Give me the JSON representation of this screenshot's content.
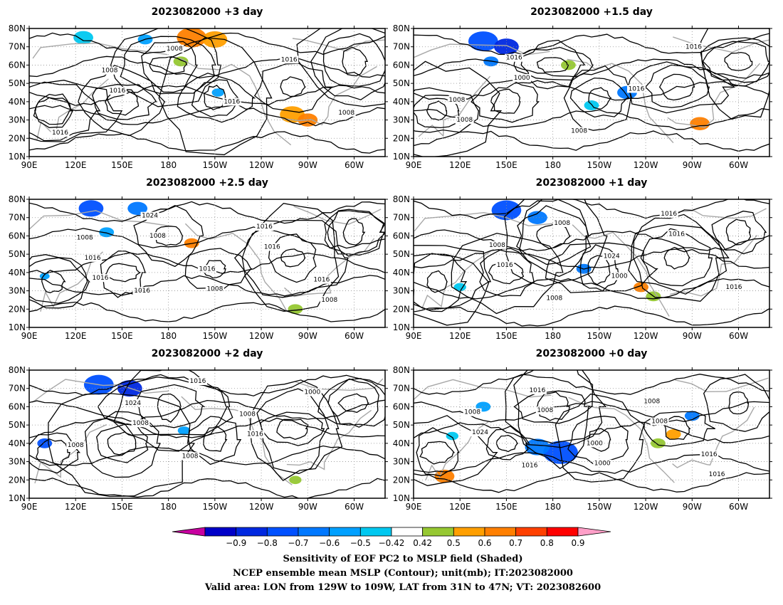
{
  "panels": [
    {
      "title": "2023082000 +3 day",
      "contour_labels": [
        "1016",
        "1016",
        "1008",
        "1016",
        "1016",
        "1008",
        "1008"
      ],
      "blobs": [
        {
          "lon": 195,
          "lat": 75,
          "r": 6,
          "color": "#ff7f00"
        },
        {
          "lon": 210,
          "lat": 74,
          "r": 5,
          "color": "#ff9f00"
        },
        {
          "lon": 260,
          "lat": 33,
          "r": 5,
          "color": "#ff9f00"
        },
        {
          "lon": 270,
          "lat": 30,
          "r": 4,
          "color": "#ff7f00"
        },
        {
          "lon": 125,
          "lat": 75,
          "r": 4,
          "color": "#00c8f0"
        },
        {
          "lon": 165,
          "lat": 74,
          "r": 3,
          "color": "#00a0ff"
        },
        {
          "lon": 212,
          "lat": 45,
          "r": 2.5,
          "color": "#00a0ff"
        },
        {
          "lon": 188,
          "lat": 62,
          "r": 3,
          "color": "#96c832"
        }
      ]
    },
    {
      "title": "2023082000 +1.5 day",
      "contour_labels": [
        "1008",
        "1000",
        "1008",
        "1016",
        "1016",
        "1008",
        "1016"
      ],
      "blobs": [
        {
          "lon": 135,
          "lat": 73,
          "r": 6,
          "color": "#0050ff"
        },
        {
          "lon": 150,
          "lat": 70,
          "r": 5,
          "color": "#0028e0"
        },
        {
          "lon": 140,
          "lat": 62,
          "r": 3,
          "color": "#0078ff"
        },
        {
          "lon": 228,
          "lat": 45,
          "r": 4,
          "color": "#0078ff"
        },
        {
          "lon": 275,
          "lat": 28,
          "r": 4,
          "color": "#ff7f00"
        },
        {
          "lon": 205,
          "lat": 38,
          "r": 3,
          "color": "#00c8f0"
        },
        {
          "lon": 190,
          "lat": 60,
          "r": 3,
          "color": "#96c832"
        }
      ]
    },
    {
      "title": "2023082000 +2.5 day",
      "contour_labels": [
        "1016",
        "1008",
        "1008",
        "1016",
        "1008",
        "1016",
        "1024",
        "1016",
        "1016",
        "1016",
        "1008",
        "1016"
      ],
      "blobs": [
        {
          "lon": 130,
          "lat": 75,
          "r": 5,
          "color": "#0050ff"
        },
        {
          "lon": 160,
          "lat": 75,
          "r": 4,
          "color": "#0078ff"
        },
        {
          "lon": 140,
          "lat": 62,
          "r": 3,
          "color": "#00a0ff"
        },
        {
          "lon": 195,
          "lat": 56,
          "r": 3,
          "color": "#ff7f00"
        },
        {
          "lon": 262,
          "lat": 20,
          "r": 3,
          "color": "#96c832"
        },
        {
          "lon": 100,
          "lat": 38,
          "r": 2,
          "color": "#00a0ff"
        }
      ]
    },
    {
      "title": "2023082000 +1 day",
      "contour_labels": [
        "1016",
        "1008",
        "1000",
        "1016",
        "1016",
        "1008",
        "1008",
        "1024",
        "1016"
      ],
      "blobs": [
        {
          "lon": 150,
          "lat": 74,
          "r": 6,
          "color": "#0050ff"
        },
        {
          "lon": 170,
          "lat": 70,
          "r": 4,
          "color": "#0078ff"
        },
        {
          "lon": 200,
          "lat": 42,
          "r": 3,
          "color": "#0078ff"
        },
        {
          "lon": 237,
          "lat": 32,
          "r": 3,
          "color": "#ff7f00"
        },
        {
          "lon": 245,
          "lat": 27,
          "r": 3,
          "color": "#96c832"
        },
        {
          "lon": 120,
          "lat": 32,
          "r": 2.5,
          "color": "#00c8f0"
        }
      ]
    },
    {
      "title": "2023082000 +2 day",
      "contour_labels": [
        "1008",
        "1016",
        "1016",
        "1000",
        "1008",
        "1024",
        "1008",
        "1008"
      ],
      "blobs": [
        {
          "lon": 135,
          "lat": 72,
          "r": 6,
          "color": "#0050ff"
        },
        {
          "lon": 155,
          "lat": 70,
          "r": 5,
          "color": "#0028e0"
        },
        {
          "lon": 100,
          "lat": 40,
          "r": 3,
          "color": "#0050ff"
        },
        {
          "lon": 190,
          "lat": 47,
          "r": 2.5,
          "color": "#00a0ff"
        },
        {
          "lon": 262,
          "lat": 20,
          "r": 2.5,
          "color": "#96c832"
        }
      ]
    },
    {
      "title": "2023082000 +0 day",
      "contour_labels": [
        "1008",
        "1000",
        "1008",
        "1016",
        "1024",
        "1016",
        "1000",
        "1008",
        "1016",
        "1008",
        "1016"
      ],
      "blobs": [
        {
          "lon": 185,
          "lat": 35,
          "r": 7,
          "color": "#0050ff"
        },
        {
          "lon": 170,
          "lat": 38,
          "r": 5,
          "color": "#0078ff"
        },
        {
          "lon": 110,
          "lat": 22,
          "r": 4,
          "color": "#ff7f00"
        },
        {
          "lon": 258,
          "lat": 45,
          "r": 3,
          "color": "#ff9f00"
        },
        {
          "lon": 270,
          "lat": 55,
          "r": 3,
          "color": "#0078ff"
        },
        {
          "lon": 135,
          "lat": 60,
          "r": 3,
          "color": "#00a0ff"
        },
        {
          "lon": 248,
          "lat": 40,
          "r": 3,
          "color": "#96c832"
        },
        {
          "lon": 115,
          "lat": 44,
          "r": 2.5,
          "color": "#00c8f0"
        }
      ]
    }
  ],
  "axes": {
    "lon_labels": [
      "90E",
      "120E",
      "150E",
      "180",
      "150W",
      "120W",
      "90W",
      "60W"
    ],
    "lon_values": [
      90,
      120,
      150,
      180,
      210,
      240,
      270,
      300
    ],
    "lat_labels": [
      "10N",
      "20N",
      "30N",
      "40N",
      "50N",
      "60N",
      "70N",
      "80N"
    ],
    "lat_values": [
      10,
      20,
      30,
      40,
      50,
      60,
      70,
      80
    ],
    "lon_range": [
      90,
      320
    ],
    "lat_range": [
      10,
      80
    ]
  },
  "colorbar": {
    "ticks": [
      "−0.9",
      "−0.8",
      "−0.7",
      "−0.6",
      "−0.5",
      "−0.42",
      "0.42",
      "0.5",
      "0.6",
      "0.7",
      "0.8",
      "0.9"
    ],
    "colors": [
      "#c800a0",
      "#0000c8",
      "#0028e0",
      "#0050ff",
      "#0078ff",
      "#00a0ff",
      "#00c8f0",
      "#ffffff",
      "#96c832",
      "#ff9f00",
      "#ff7f00",
      "#ff4000",
      "#ff0000",
      "#ff9fc8"
    ]
  },
  "caption": {
    "line1": "Sensitivity of EOF PC2 to MSLP field (Shaded)",
    "line2": "NCEP ensemble mean MSLP (Contour); unit(mb); IT:2023082000",
    "line3": "Valid area: LON from 129W to 109W, LAT from 31N to 47N; VT: 2023082600"
  }
}
